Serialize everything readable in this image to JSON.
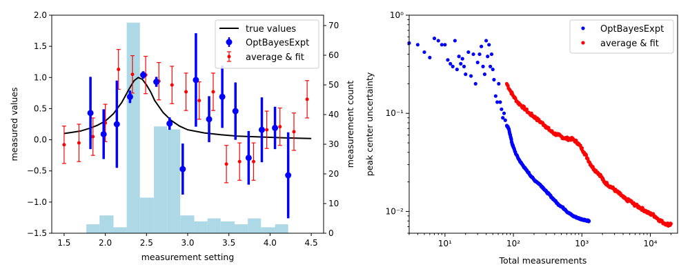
{
  "chart_data": [
    {
      "type": "scatter",
      "xlabel": "measurement setting",
      "ylabel": "measured values",
      "ylabel_right": "measurement count",
      "xlim": [
        1.35,
        4.65
      ],
      "ylim": [
        -1.5,
        2.0
      ],
      "ylim_right": [
        0,
        73.5
      ],
      "xticks": [
        "1.5",
        "2.0",
        "2.5",
        "3.0",
        "3.5",
        "4.0",
        "4.5"
      ],
      "yticks": [
        "−1.5",
        "−1.0",
        "−0.5",
        "0.0",
        "0.5",
        "1.0",
        "1.5",
        "2.0"
      ],
      "yticks_right": [
        "0",
        "10",
        "20",
        "30",
        "40",
        "50",
        "60",
        "70"
      ],
      "legend": [
        "true values",
        "OptBayesExpt",
        "average & fit"
      ],
      "legend_position": "upper right",
      "histogram": {
        "color": "#add8e6",
        "edges": [
          1.77,
          1.93,
          2.1,
          2.26,
          2.42,
          2.59,
          2.75,
          2.91,
          3.08,
          3.24,
          3.4,
          3.57,
          3.73,
          3.89,
          4.06,
          4.22
        ],
        "counts": [
          3,
          6,
          2,
          71,
          12,
          36,
          35,
          6,
          4,
          5,
          4,
          3,
          5,
          2,
          3
        ]
      },
      "true_curve": {
        "name": "true values",
        "color": "#000000",
        "x": [
          1.5,
          1.6,
          1.7,
          1.8,
          1.9,
          2.0,
          2.1,
          2.2,
          2.3,
          2.35,
          2.4,
          2.45,
          2.5,
          2.55,
          2.6,
          2.7,
          2.8,
          2.9,
          3.0,
          3.2,
          3.4,
          3.6,
          3.8,
          4.0,
          4.2,
          4.5
        ],
        "y": [
          0.1,
          0.12,
          0.14,
          0.18,
          0.23,
          0.3,
          0.42,
          0.6,
          0.84,
          0.95,
          1.0,
          0.97,
          0.88,
          0.77,
          0.63,
          0.44,
          0.31,
          0.22,
          0.16,
          0.11,
          0.08,
          0.06,
          0.05,
          0.04,
          0.03,
          0.02
        ]
      },
      "series": [
        {
          "name": "OptBayesExpt",
          "color": "#0000ff",
          "x": [
            1.82,
            1.98,
            2.14,
            2.3,
            2.46,
            2.62,
            2.78,
            2.94,
            3.1,
            3.26,
            3.42,
            3.58,
            3.74,
            3.9,
            4.06,
            4.22
          ],
          "y": [
            0.43,
            0.09,
            0.25,
            0.69,
            1.04,
            0.93,
            0.26,
            -0.47,
            0.96,
            0.33,
            0.69,
            0.46,
            -0.29,
            0.16,
            0.19,
            -0.57
          ],
          "err": [
            0.58,
            0.4,
            0.7,
            0.1,
            0.06,
            0.08,
            0.1,
            0.41,
            0.75,
            0.37,
            0.5,
            0.46,
            0.43,
            0.52,
            0.34,
            0.69
          ]
        },
        {
          "name": "average & fit",
          "color": "#ff0000",
          "x": [
            1.5,
            1.68,
            1.85,
            2.0,
            2.16,
            2.33,
            2.49,
            2.65,
            2.81,
            2.98,
            3.14,
            3.31,
            3.47,
            3.63,
            3.8,
            3.96,
            4.12,
            4.29,
            4.45
          ],
          "y": [
            -0.08,
            -0.05,
            0.05,
            0.27,
            1.13,
            1.05,
            1.04,
            0.94,
            0.88,
            0.77,
            0.63,
            0.77,
            -0.39,
            -0.35,
            -0.35,
            0.16,
            0.21,
            0.13,
            0.65
          ],
          "err": [
            0.3,
            0.3,
            0.3,
            0.3,
            0.32,
            0.3,
            0.3,
            0.3,
            0.3,
            0.3,
            0.3,
            0.3,
            0.3,
            0.3,
            0.3,
            0.3,
            0.3,
            0.3,
            0.3
          ]
        }
      ]
    },
    {
      "type": "scatter",
      "xscale": "log",
      "yscale": "log",
      "xlabel": "Total measurements",
      "ylabel": "peak center uncertainty",
      "xlim": [
        3,
        25000
      ],
      "ylim": [
        0.006,
        1.0
      ],
      "xticks": [
        "10¹",
        "10²",
        "10³",
        "10⁴"
      ],
      "yticks": [
        "10⁻²",
        "10⁻¹",
        "10⁰"
      ],
      "legend": [
        "OptBayesExpt",
        "average & fit"
      ],
      "legend_position": "upper right",
      "series": [
        {
          "name": "OptBayesExpt",
          "color": "#0000ff",
          "x": [
            3,
            4,
            5,
            6,
            7,
            8,
            9,
            10,
            11,
            12,
            13,
            14,
            15,
            16,
            17,
            18,
            19,
            20,
            22,
            24,
            26,
            28,
            30,
            32,
            34,
            36,
            38,
            40,
            42,
            44,
            46,
            48,
            50,
            52,
            55,
            58,
            61,
            64,
            67,
            70,
            73,
            76,
            80,
            85,
            90,
            95,
            100,
            110,
            120,
            130,
            140,
            150,
            165,
            180,
            200,
            220,
            240,
            260,
            280,
            300,
            330,
            360,
            400,
            440,
            480,
            520,
            570,
            620,
            680,
            740,
            800,
            870,
            950,
            1030,
            1120,
            1200,
            1270
          ],
          "y": [
            0.52,
            0.5,
            0.42,
            0.37,
            0.58,
            0.55,
            0.5,
            0.5,
            0.35,
            0.32,
            0.3,
            0.55,
            0.28,
            0.38,
            0.32,
            0.36,
            0.3,
            0.25,
            0.42,
            0.24,
            0.4,
            0.2,
            0.33,
            0.4,
            0.48,
            0.3,
            0.25,
            0.55,
            0.38,
            0.5,
            0.3,
            0.4,
            0.28,
            0.22,
            0.15,
            0.13,
            0.2,
            0.13,
            0.11,
            0.09,
            0.1,
            0.085,
            0.075,
            0.07,
            0.06,
            0.05,
            0.045,
            0.038,
            0.034,
            0.031,
            0.029,
            0.027,
            0.025,
            0.023,
            0.021,
            0.02,
            0.019,
            0.018,
            0.017,
            0.016,
            0.015,
            0.014,
            0.013,
            0.012,
            0.0115,
            0.011,
            0.0105,
            0.0098,
            0.0094,
            0.009,
            0.0088,
            0.0086,
            0.0084,
            0.0083,
            0.0082,
            0.0081,
            0.008
          ]
        },
        {
          "name": "average & fit",
          "color": "#ff0000",
          "x": [
            80,
            90,
            100,
            115,
            130,
            150,
            170,
            190,
            210,
            230,
            260,
            290,
            320,
            360,
            400,
            450,
            500,
            560,
            620,
            700,
            780,
            870,
            970,
            1080,
            1200,
            1350,
            1500,
            1700,
            1900,
            2100,
            2350,
            2600,
            2900,
            3200,
            3600,
            4000,
            4500,
            5000,
            5600,
            6200,
            7000,
            7800,
            8700,
            9700,
            10800,
            12000,
            13500,
            15000,
            17000,
            19000,
            20000
          ],
          "y": [
            0.2,
            0.17,
            0.15,
            0.13,
            0.12,
            0.11,
            0.1,
            0.095,
            0.09,
            0.085,
            0.08,
            0.075,
            0.07,
            0.065,
            0.062,
            0.06,
            0.058,
            0.056,
            0.055,
            0.055,
            0.053,
            0.05,
            0.045,
            0.04,
            0.035,
            0.03,
            0.027,
            0.025,
            0.023,
            0.02,
            0.019,
            0.018,
            0.017,
            0.016,
            0.015,
            0.014,
            0.013,
            0.013,
            0.012,
            0.0115,
            0.011,
            0.0105,
            0.01,
            0.0095,
            0.0093,
            0.0088,
            0.0082,
            0.0078,
            0.0075,
            0.0073,
            0.0075
          ]
        }
      ]
    }
  ]
}
